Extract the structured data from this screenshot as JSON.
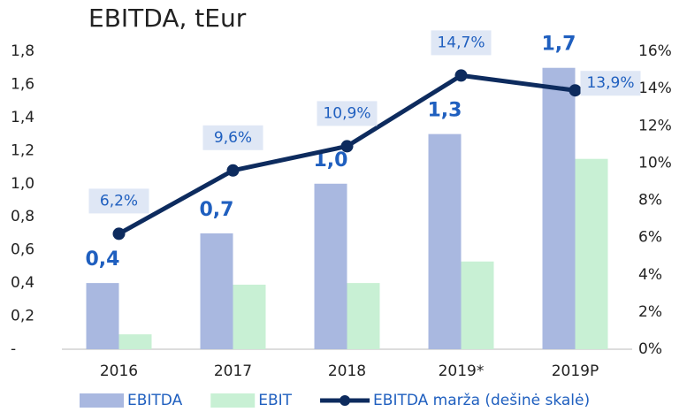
{
  "chart_data": {
    "type": "bar",
    "title": "EBITDA, tEur",
    "categories": [
      "2016",
      "2017",
      "2018",
      "2019*",
      "2019P"
    ],
    "series": [
      {
        "name": "EBITDA",
        "type": "bar",
        "color": "#a9b8e0",
        "values": [
          0.4,
          0.7,
          1.0,
          1.3,
          1.7
        ],
        "value_labels": [
          "0,4",
          "0,7",
          "1,0",
          "1,3",
          "1,7"
        ]
      },
      {
        "name": "EBIT",
        "type": "bar",
        "color": "#c8f0d4",
        "values": [
          0.09,
          0.39,
          0.4,
          0.53,
          1.15
        ]
      },
      {
        "name": "EBITDA marža (dešinė skalė)",
        "type": "line",
        "axis": "y2",
        "color": "#0d2b5e",
        "values": [
          6.2,
          9.6,
          10.9,
          14.7,
          13.9
        ],
        "value_labels": [
          "6,2%",
          "9,6%",
          "10,9%",
          "14,7%",
          "13,9%"
        ]
      }
    ],
    "ylim": [
      0,
      1.8
    ],
    "yticks": [
      {
        "value": 0,
        "label": "-"
      },
      {
        "value": 0.2,
        "label": "0,2"
      },
      {
        "value": 0.4,
        "label": "0,4"
      },
      {
        "value": 0.6,
        "label": "0,6"
      },
      {
        "value": 0.8,
        "label": "0,8"
      },
      {
        "value": 1.0,
        "label": "1,0"
      },
      {
        "value": 1.2,
        "label": "1,2"
      },
      {
        "value": 1.4,
        "label": "1,4"
      },
      {
        "value": 1.6,
        "label": "1,6"
      },
      {
        "value": 1.8,
        "label": "1,8"
      }
    ],
    "y2lim": [
      0,
      16
    ],
    "y2ticks": [
      {
        "value": 0,
        "label": "0%"
      },
      {
        "value": 2,
        "label": "2%"
      },
      {
        "value": 4,
        "label": "4%"
      },
      {
        "value": 6,
        "label": "6%"
      },
      {
        "value": 8,
        "label": "8%"
      },
      {
        "value": 10,
        "label": "10%"
      },
      {
        "value": 12,
        "label": "12%"
      },
      {
        "value": 14,
        "label": "14%"
      },
      {
        "value": 16,
        "label": "16%"
      }
    ],
    "grid": false,
    "legend": "bottom"
  }
}
